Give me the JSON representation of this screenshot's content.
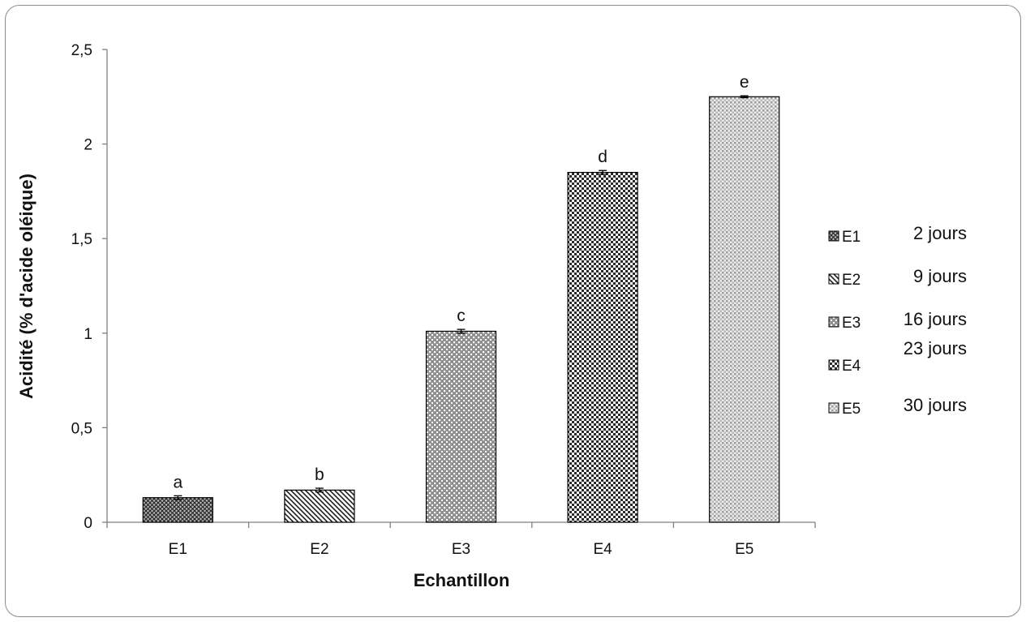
{
  "chart_data": {
    "type": "bar",
    "title": "",
    "xlabel": "Echantillon",
    "ylabel": "Acidité (% d'acide oléique)",
    "ylim": [
      0,
      2.5
    ],
    "yticks": [
      0,
      0.5,
      1,
      1.5,
      2,
      2.5
    ],
    "ytick_labels": [
      "0",
      "0,5",
      "1",
      "1,5",
      "2",
      "2,5"
    ],
    "categories": [
      "E1",
      "E2",
      "E3",
      "E4",
      "E5"
    ],
    "values": [
      0.13,
      0.17,
      1.01,
      1.85,
      2.25
    ],
    "errors": [
      0.01,
      0.01,
      0.01,
      0.01,
      0.005
    ],
    "significance_labels": [
      "a",
      "b",
      "c",
      "d",
      "e"
    ],
    "fill_patterns": [
      "fine-cross-dark",
      "diagonal-hatch",
      "dot-grid-gray",
      "checker-dense",
      "dot-grid-light"
    ],
    "grid": false,
    "legend": {
      "placement": "right",
      "entries": [
        {
          "label": "E1",
          "extra": "2 jours"
        },
        {
          "label": "E2",
          "extra": "9 jours"
        },
        {
          "label": "E3",
          "extra": "16 jours"
        },
        {
          "label": "E4",
          "extra": "23 jours"
        },
        {
          "label": "E5",
          "extra": "30 jours"
        }
      ]
    }
  }
}
